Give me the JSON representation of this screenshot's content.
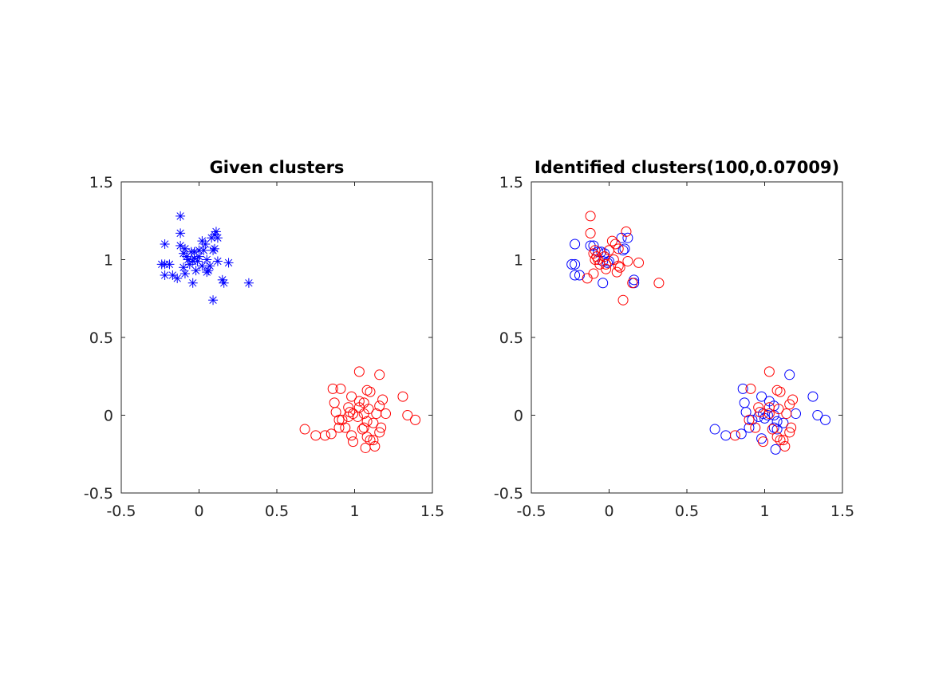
{
  "chart_data": [
    {
      "type": "scatter",
      "title": "Given clusters",
      "xlabel": "",
      "ylabel": "",
      "xlim": [
        -0.5,
        1.5
      ],
      "ylim": [
        -0.5,
        1.5
      ],
      "xticks": [
        "-0.5",
        "0",
        "0.5",
        "1",
        "1.5"
      ],
      "yticks": [
        "-0.5",
        "0",
        "0.5",
        "1",
        "1.5"
      ],
      "grid": false,
      "series": [
        {
          "color": "#0000ff",
          "marker": "asterisk",
          "points": [
            [
              -0.12,
              1.28
            ],
            [
              -0.12,
              1.17
            ],
            [
              0.11,
              1.18
            ],
            [
              0.1,
              1.16
            ],
            [
              0.08,
              1.14
            ],
            [
              0.12,
              1.14
            ],
            [
              0.02,
              1.12
            ],
            [
              0.04,
              1.1
            ],
            [
              -0.12,
              1.09
            ],
            [
              -0.22,
              1.1
            ],
            [
              -0.09,
              1.07
            ],
            [
              0.0,
              1.06
            ],
            [
              0.03,
              1.06
            ],
            [
              0.1,
              1.07
            ],
            [
              0.09,
              1.06
            ],
            [
              -0.1,
              1.04
            ],
            [
              -0.05,
              1.05
            ],
            [
              -0.03,
              1.05
            ],
            [
              -0.08,
              1.02
            ],
            [
              0.0,
              1.02
            ],
            [
              -0.03,
              1.01
            ],
            [
              -0.01,
              0.99
            ],
            [
              -0.07,
              1.0
            ],
            [
              -0.04,
              0.99
            ],
            [
              0.05,
              1.0
            ],
            [
              0.12,
              0.99
            ],
            [
              0.19,
              0.98
            ],
            [
              -0.24,
              0.97
            ],
            [
              -0.22,
              0.97
            ],
            [
              -0.19,
              0.97
            ],
            [
              -0.06,
              0.97
            ],
            [
              0.02,
              0.96
            ],
            [
              0.07,
              0.96
            ],
            [
              -0.1,
              0.95
            ],
            [
              0.06,
              0.93
            ],
            [
              -0.02,
              0.93
            ],
            [
              -0.22,
              0.9
            ],
            [
              -0.17,
              0.9
            ],
            [
              -0.09,
              0.91
            ],
            [
              0.05,
              0.92
            ],
            [
              -0.14,
              0.88
            ],
            [
              0.15,
              0.87
            ],
            [
              0.16,
              0.85
            ],
            [
              -0.04,
              0.85
            ],
            [
              0.32,
              0.85
            ],
            [
              0.09,
              0.74
            ]
          ]
        },
        {
          "color": "#ff0000",
          "marker": "circle",
          "points": [
            [
              1.03,
              0.28
            ],
            [
              1.16,
              0.26
            ],
            [
              0.86,
              0.17
            ],
            [
              0.91,
              0.17
            ],
            [
              1.08,
              0.16
            ],
            [
              1.1,
              0.15
            ],
            [
              1.31,
              0.12
            ],
            [
              0.98,
              0.12
            ],
            [
              1.18,
              0.1
            ],
            [
              1.03,
              0.09
            ],
            [
              1.06,
              0.08
            ],
            [
              0.87,
              0.08
            ],
            [
              1.16,
              0.06
            ],
            [
              1.03,
              0.05
            ],
            [
              0.96,
              0.05
            ],
            [
              1.09,
              0.04
            ],
            [
              0.88,
              0.02
            ],
            [
              0.97,
              0.02
            ],
            [
              0.99,
              0.01
            ],
            [
              1.06,
              0.01
            ],
            [
              1.14,
              0.01
            ],
            [
              1.2,
              0.01
            ],
            [
              1.34,
              0.0
            ],
            [
              0.96,
              -0.01
            ],
            [
              1.02,
              -0.01
            ],
            [
              0.92,
              -0.03
            ],
            [
              0.9,
              -0.03
            ],
            [
              1.39,
              -0.03
            ],
            [
              1.08,
              -0.04
            ],
            [
              1.12,
              -0.05
            ],
            [
              0.9,
              -0.08
            ],
            [
              0.94,
              -0.08
            ],
            [
              1.06,
              -0.08
            ],
            [
              1.17,
              -0.08
            ],
            [
              1.05,
              -0.09
            ],
            [
              0.68,
              -0.09
            ],
            [
              1.16,
              -0.11
            ],
            [
              0.75,
              -0.13
            ],
            [
              0.81,
              -0.13
            ],
            [
              0.85,
              -0.12
            ],
            [
              0.98,
              -0.13
            ],
            [
              1.08,
              -0.14
            ],
            [
              1.1,
              -0.16
            ],
            [
              1.12,
              -0.16
            ],
            [
              0.99,
              -0.17
            ],
            [
              1.13,
              -0.2
            ],
            [
              1.07,
              -0.21
            ]
          ]
        }
      ]
    },
    {
      "type": "scatter",
      "title": "Identified clusters(100,0.07009)",
      "xlabel": "",
      "ylabel": "",
      "xlim": [
        -0.5,
        1.5
      ],
      "ylim": [
        -0.5,
        1.5
      ],
      "xticks": [
        "-0.5",
        "0",
        "0.5",
        "1",
        "1.5"
      ],
      "yticks": [
        "-0.5",
        "0",
        "0.5",
        "1",
        "1.5"
      ],
      "grid": false,
      "series": [
        {
          "color": "#0000ff",
          "marker": "circle",
          "points": [
            [
              -0.22,
              1.1
            ],
            [
              -0.12,
              1.09
            ],
            [
              -0.1,
              1.09
            ],
            [
              0.08,
              1.14
            ],
            [
              0.12,
              1.14
            ],
            [
              0.1,
              1.07
            ],
            [
              0.09,
              1.06
            ],
            [
              -0.05,
              1.05
            ],
            [
              -0.07,
              1.05
            ],
            [
              -0.03,
              1.04
            ],
            [
              0.0,
              0.99
            ],
            [
              -0.01,
              0.98
            ],
            [
              -0.04,
              0.99
            ],
            [
              -0.24,
              0.97
            ],
            [
              -0.22,
              0.97
            ],
            [
              -0.19,
              0.9
            ],
            [
              -0.22,
              0.9
            ],
            [
              0.16,
              0.87
            ],
            [
              0.16,
              0.85
            ],
            [
              -0.04,
              0.85
            ],
            [
              1.16,
              0.26
            ],
            [
              0.86,
              0.17
            ],
            [
              0.98,
              0.12
            ],
            [
              1.31,
              0.12
            ],
            [
              0.87,
              0.08
            ],
            [
              1.03,
              0.09
            ],
            [
              1.06,
              0.06
            ],
            [
              0.88,
              0.02
            ],
            [
              0.99,
              0.01
            ],
            [
              1.02,
              0.0
            ],
            [
              1.06,
              0.0
            ],
            [
              1.2,
              0.01
            ],
            [
              1.34,
              0.0
            ],
            [
              0.96,
              -0.01
            ],
            [
              1.0,
              -0.02
            ],
            [
              0.92,
              -0.03
            ],
            [
              1.39,
              -0.03
            ],
            [
              1.08,
              -0.04
            ],
            [
              1.12,
              -0.05
            ],
            [
              0.9,
              -0.08
            ],
            [
              1.06,
              -0.08
            ],
            [
              1.08,
              -0.09
            ],
            [
              0.68,
              -0.09
            ],
            [
              0.75,
              -0.13
            ],
            [
              0.85,
              -0.12
            ],
            [
              0.98,
              -0.15
            ],
            [
              1.07,
              -0.22
            ]
          ]
        },
        {
          "color": "#ff0000",
          "marker": "circle",
          "points": [
            [
              -0.12,
              1.28
            ],
            [
              -0.12,
              1.17
            ],
            [
              0.11,
              1.18
            ],
            [
              0.02,
              1.12
            ],
            [
              0.04,
              1.1
            ],
            [
              0.06,
              1.07
            ],
            [
              -0.09,
              1.06
            ],
            [
              0.0,
              1.06
            ],
            [
              -0.1,
              1.04
            ],
            [
              -0.08,
              1.02
            ],
            [
              -0.03,
              1.02
            ],
            [
              0.03,
              1.0
            ],
            [
              0.12,
              0.99
            ],
            [
              0.19,
              0.98
            ],
            [
              -0.07,
              1.0
            ],
            [
              -0.09,
              1.0
            ],
            [
              0.06,
              0.96
            ],
            [
              0.07,
              0.95
            ],
            [
              -0.06,
              0.97
            ],
            [
              -0.02,
              0.97
            ],
            [
              -0.02,
              0.94
            ],
            [
              -0.1,
              0.91
            ],
            [
              0.05,
              0.92
            ],
            [
              -0.14,
              0.88
            ],
            [
              0.15,
              0.85
            ],
            [
              0.32,
              0.85
            ],
            [
              0.09,
              0.74
            ],
            [
              1.03,
              0.28
            ],
            [
              0.91,
              0.17
            ],
            [
              1.08,
              0.16
            ],
            [
              1.1,
              0.15
            ],
            [
              1.18,
              0.1
            ],
            [
              1.16,
              0.07
            ],
            [
              1.03,
              0.05
            ],
            [
              0.96,
              0.05
            ],
            [
              1.09,
              0.04
            ],
            [
              0.97,
              0.02
            ],
            [
              1.03,
              0.01
            ],
            [
              1.14,
              0.01
            ],
            [
              0.9,
              -0.03
            ],
            [
              0.94,
              -0.08
            ],
            [
              1.17,
              -0.08
            ],
            [
              1.05,
              -0.09
            ],
            [
              1.16,
              -0.11
            ],
            [
              0.81,
              -0.13
            ],
            [
              1.08,
              -0.14
            ],
            [
              1.1,
              -0.16
            ],
            [
              1.12,
              -0.16
            ],
            [
              0.99,
              -0.17
            ],
            [
              1.13,
              -0.2
            ]
          ]
        }
      ]
    }
  ]
}
